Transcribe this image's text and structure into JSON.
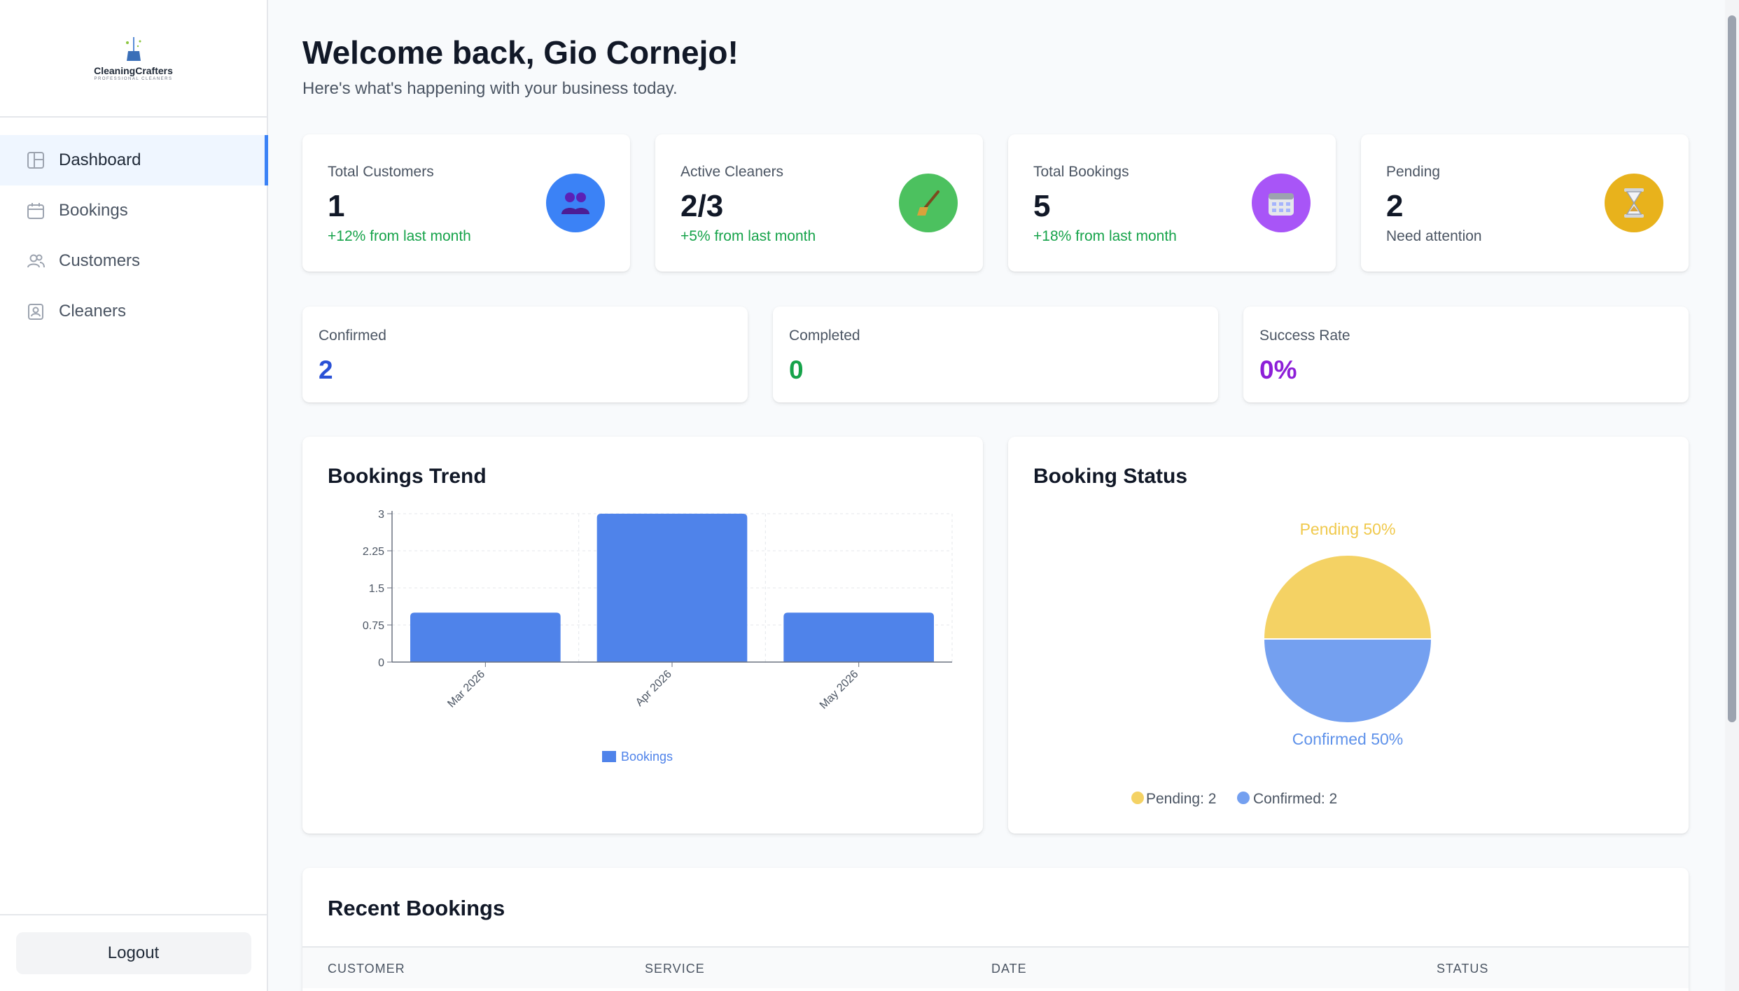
{
  "brand": {
    "name": "CleaningCrafters",
    "tagline": "PROFESSIONAL CLEANERS"
  },
  "sidebar": {
    "items": [
      {
        "label": "Dashboard",
        "icon": "dashboard-icon",
        "active": true
      },
      {
        "label": "Bookings",
        "icon": "calendar-icon",
        "active": false
      },
      {
        "label": "Customers",
        "icon": "users-icon",
        "active": false
      },
      {
        "label": "Cleaners",
        "icon": "badge-icon",
        "active": false
      }
    ],
    "logout_label": "Logout"
  },
  "header": {
    "welcome": "Welcome back, Gio Cornejo!",
    "subtitle": "Here's what's happening with your business today."
  },
  "stats": [
    {
      "label": "Total Customers",
      "value": "1",
      "note": "+12% from last month",
      "icon": "people-icon",
      "color": "#3b82f6"
    },
    {
      "label": "Active Cleaners",
      "value": "2/3",
      "note": "+5% from last month",
      "icon": "broom-icon",
      "color": "#4cc15f"
    },
    {
      "label": "Total Bookings",
      "value": "5",
      "note": "+18% from last month",
      "icon": "calendar-icon",
      "color": "#a855f7"
    },
    {
      "label": "Pending",
      "value": "2",
      "note": "Need attention",
      "icon": "hourglass-icon",
      "color": "#e8b21c"
    }
  ],
  "mini_stats": [
    {
      "label": "Confirmed",
      "value": "2",
      "color": "#2a51d6"
    },
    {
      "label": "Completed",
      "value": "0",
      "color": "#16a34a"
    },
    {
      "label": "Success Rate",
      "value": "0%",
      "color": "#8d1fd8"
    }
  ],
  "bookings_trend": {
    "title": "Bookings Trend",
    "legend": "Bookings"
  },
  "booking_status": {
    "title": "Booking Status",
    "label_pending": "Pending 50%",
    "label_confirmed": "Confirmed 50%",
    "legend_pending": "Pending: 2",
    "legend_confirmed": "Confirmed: 2"
  },
  "recent_bookings": {
    "title": "Recent Bookings",
    "columns": [
      "CUSTOMER",
      "SERVICE",
      "DATE",
      "STATUS"
    ]
  },
  "chart_data": [
    {
      "type": "bar",
      "title": "Bookings Trend",
      "categories": [
        "Mar 2026",
        "Apr 2026",
        "May 2026"
      ],
      "series": [
        {
          "name": "Bookings",
          "values": [
            1,
            3,
            1
          ],
          "color": "#4f83ea"
        }
      ],
      "yticks": [
        "0",
        "0.75",
        "1.5",
        "2.25",
        "3"
      ],
      "ylim": [
        0,
        3
      ],
      "grid": true,
      "legend": "bottom"
    },
    {
      "type": "pie",
      "title": "Booking Status",
      "labels": [
        "Pending",
        "Confirmed"
      ],
      "values": [
        2,
        2
      ],
      "percent_labels": [
        "Pending 50%",
        "Confirmed 50%"
      ],
      "colors": [
        "#f4d264",
        "#74a0f0"
      ],
      "legend": "bottom"
    }
  ]
}
